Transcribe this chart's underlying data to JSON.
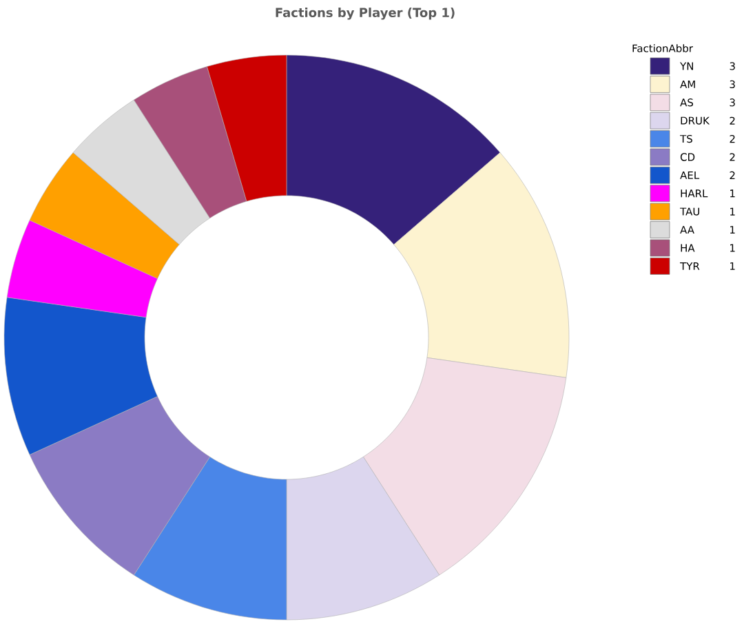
{
  "chart_data": {
    "type": "donut",
    "title": "Factions by Player (Top 1)",
    "legend_title": "FactionAbbr",
    "categories": [
      "YN",
      "AM",
      "AS",
      "DRUK",
      "TS",
      "CD",
      "AEL",
      "HARL",
      "TAU",
      "AA",
      "HA",
      "TYR"
    ],
    "values": [
      3,
      3,
      3,
      2,
      2,
      2,
      2,
      1,
      1,
      1,
      1,
      1
    ],
    "colors": [
      "#35217a",
      "#fdf3d0",
      "#f3dde6",
      "#dcd6ee",
      "#4a86e8",
      "#8b7bc4",
      "#1356cc",
      "#ff00ff",
      "#ffa000",
      "#dcdcdc",
      "#a8507a",
      "#cc0000"
    ],
    "legend": "top right",
    "data_labels": true
  }
}
